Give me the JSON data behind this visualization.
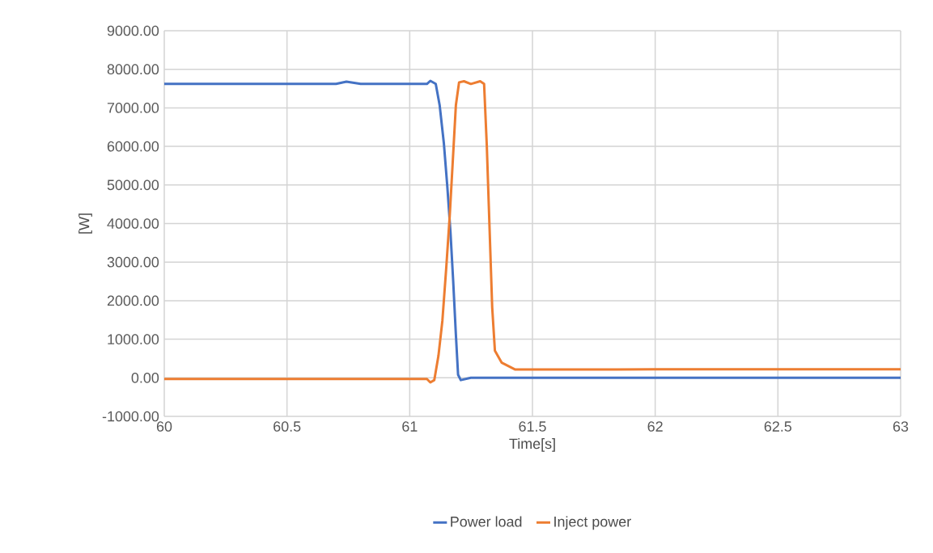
{
  "chart_data": {
    "type": "line",
    "xlabel": "Time[s]",
    "ylabel": "[W]",
    "xlim": [
      60,
      63
    ],
    "ylim": [
      -1000,
      9000
    ],
    "xticks": [
      60,
      60.5,
      61,
      61.5,
      62,
      62.5,
      63
    ],
    "yticks": [
      {
        "value": -1000,
        "label": "-1000.00"
      },
      {
        "value": 0,
        "label": "0.00"
      },
      {
        "value": 1000,
        "label": "1000.00"
      },
      {
        "value": 2000,
        "label": "2000.00"
      },
      {
        "value": 3000,
        "label": "3000.00"
      },
      {
        "value": 4000,
        "label": "4000.00"
      },
      {
        "value": 5000,
        "label": "5000.00"
      },
      {
        "value": 6000,
        "label": "6000.00"
      },
      {
        "value": 7000,
        "label": "7000.00"
      },
      {
        "value": 8000,
        "label": "8000.00"
      },
      {
        "value": 9000,
        "label": "9000.00"
      }
    ],
    "grid": true,
    "legend": "bottom",
    "series": [
      {
        "name": "Power load",
        "color": "#4472c4",
        "x": [
          60,
          60.3,
          60.7,
          60.742,
          60.8,
          61.07,
          61.084,
          61.106,
          61.122,
          61.139,
          61.153,
          61.166,
          61.177,
          61.188,
          61.197,
          61.208,
          61.249,
          61.5,
          62,
          62.5,
          63
        ],
        "values": [
          7620,
          7620,
          7620,
          7680,
          7620,
          7620,
          7700,
          7620,
          7065,
          6086,
          4970,
          3780,
          2520,
          1125,
          80,
          -60,
          0,
          0,
          0,
          0,
          0
        ]
      },
      {
        "name": "Inject power",
        "color": "#ed7d31",
        "x": [
          60,
          60.5,
          61,
          61.07,
          61.084,
          61.1,
          61.117,
          61.133,
          61.149,
          61.163,
          61.177,
          61.188,
          61.201,
          61.221,
          61.249,
          61.287,
          61.303,
          61.314,
          61.325,
          61.336,
          61.347,
          61.375,
          61.43,
          61.49,
          62,
          62.5,
          63
        ],
        "values": [
          -30,
          -30,
          -30,
          -30,
          -120,
          -60,
          570,
          1475,
          2870,
          4200,
          5800,
          7065,
          7660,
          7690,
          7620,
          7690,
          7620,
          6020,
          3920,
          1825,
          705,
          390,
          215,
          215,
          220,
          220,
          220
        ]
      }
    ]
  }
}
